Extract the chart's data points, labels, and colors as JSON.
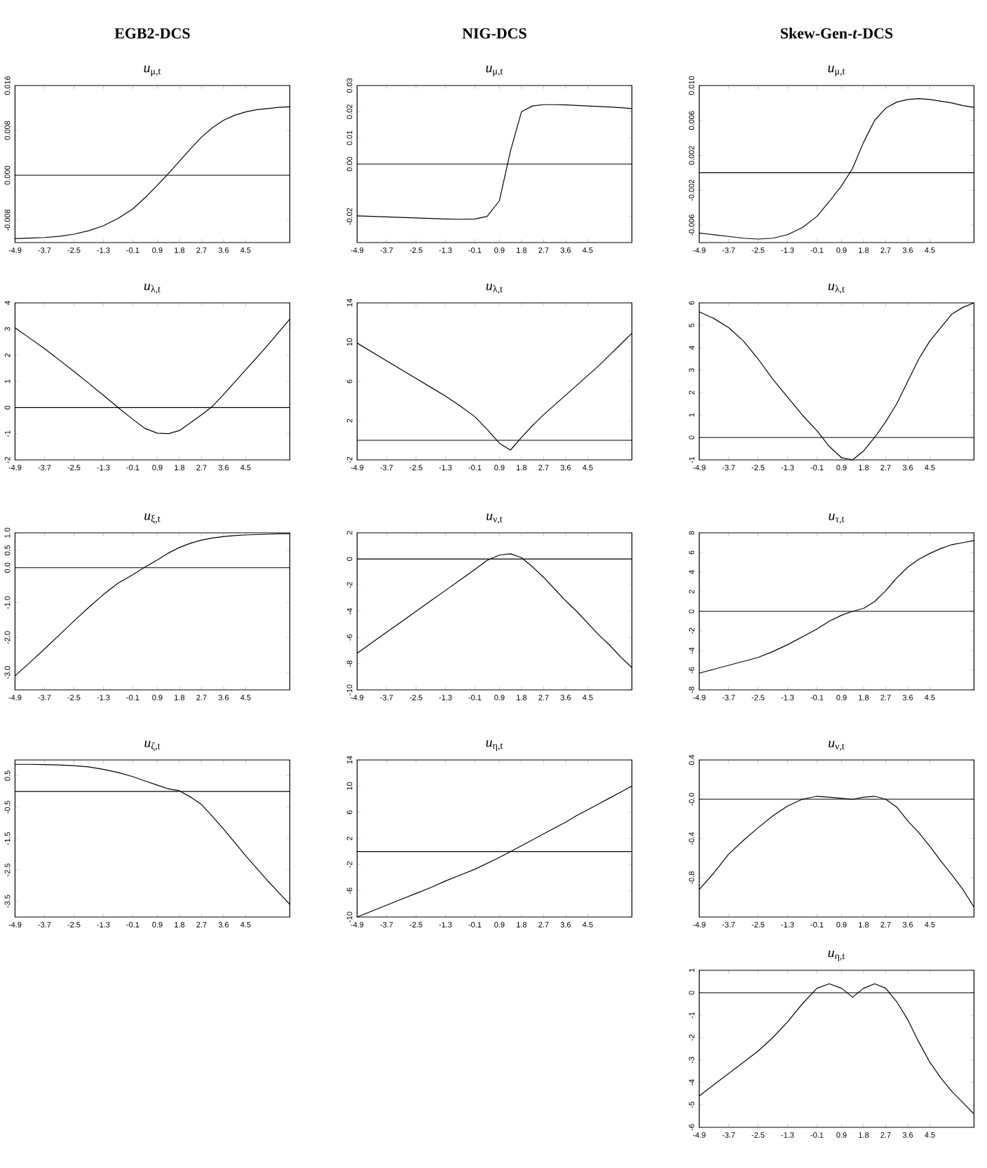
{
  "chart_data": [
    {
      "type": "line",
      "title": "EGB2-DCS",
      "subtitle": "*u*$_{μ,t}$",
      "color": "#000000",
      "xlim": [
        -4.9,
        6.3
      ],
      "ylim": [
        -0.012,
        0.016
      ],
      "xticks": [
        -4.9,
        -3.7,
        -2.5,
        -1.3,
        -0.1,
        0.9,
        1.8,
        2.7,
        3.6,
        4.5
      ],
      "yticks": [
        -0.008,
        {
          "value": 0,
          "label": "0.000"
        },
        0.008,
        0.016
      ],
      "ref_lines": [
        {
          "axis": "y",
          "value": 0
        }
      ],
      "x": [
        -4.9,
        -4.3,
        -3.7,
        -3.1,
        -2.5,
        -1.9,
        -1.3,
        -0.7,
        -0.1,
        0.4,
        0.9,
        1.35,
        1.8,
        2.25,
        2.7,
        3.15,
        3.6,
        4.05,
        4.5,
        4.95,
        5.4,
        5.85,
        6.3
      ],
      "values": [
        -0.0113,
        -0.0112,
        -0.0111,
        -0.0109,
        -0.0105,
        -0.0099,
        -0.009,
        -0.0077,
        -0.006,
        -0.004,
        -0.0018,
        0.0003,
        0.0025,
        0.0047,
        0.0068,
        0.0085,
        0.0098,
        0.0107,
        0.0113,
        0.0117,
        0.0119,
        0.0121,
        0.0122
      ]
    },
    {
      "type": "line",
      "title": "NIG-DCS",
      "subtitle": "*u*$_{μ,t}$",
      "color": "#000000",
      "xlim": [
        -4.9,
        6.3
      ],
      "ylim": [
        -0.03,
        0.03
      ],
      "xticks": [
        -4.9,
        -3.7,
        -2.5,
        -1.3,
        -0.1,
        0.9,
        1.8,
        2.7,
        3.6,
        4.5
      ],
      "yticks": [
        -0.02,
        {
          "value": 0,
          "label": "0.00"
        },
        0.01,
        0.02,
        0.03
      ],
      "ref_lines": [
        {
          "axis": "y",
          "value": 0
        }
      ],
      "x": [
        -4.9,
        -4.3,
        -3.7,
        -3.1,
        -2.5,
        -1.9,
        -1.3,
        -0.7,
        -0.1,
        0.4,
        0.9,
        1.35,
        1.8,
        2.25,
        2.7,
        3.15,
        3.6,
        4.05,
        4.5,
        4.95,
        5.4,
        5.85,
        6.3
      ],
      "values": [
        -0.0198,
        -0.02,
        -0.0202,
        -0.0204,
        -0.0206,
        -0.0208,
        -0.021,
        -0.0211,
        -0.021,
        -0.02,
        -0.014,
        0.005,
        0.02,
        0.0222,
        0.0227,
        0.0227,
        0.0226,
        0.0224,
        0.0222,
        0.022,
        0.0218,
        0.0215,
        0.0212
      ]
    },
    {
      "type": "line",
      "title": "Skew-Gen-*t*-DCS",
      "subtitle": "*u*$_{μ,t}$",
      "color": "#000000",
      "xlim": [
        -4.9,
        6.3
      ],
      "ylim": [
        -0.008,
        0.01
      ],
      "xticks": [
        -4.9,
        -3.7,
        -2.5,
        -1.3,
        -0.1,
        0.9,
        1.8,
        2.7,
        3.6,
        4.5
      ],
      "yticks": [
        -0.006,
        -0.002,
        0.002,
        0.006,
        {
          "value": 0.01,
          "label": "0.010"
        }
      ],
      "ref_lines": [
        {
          "axis": "y",
          "value": 0
        }
      ],
      "x": [
        -4.9,
        -4.3,
        -3.7,
        -3.1,
        -2.5,
        -1.9,
        -1.3,
        -0.7,
        -0.1,
        0.4,
        0.9,
        1.35,
        1.8,
        2.25,
        2.7,
        3.15,
        3.6,
        4.05,
        4.5,
        4.95,
        5.4,
        5.85,
        6.3
      ],
      "values": [
        -0.0069,
        -0.0071,
        -0.0073,
        -0.0075,
        -0.0076,
        -0.0075,
        -0.0071,
        -0.0063,
        -0.005,
        -0.0033,
        -0.0015,
        0.0005,
        0.0035,
        0.006,
        0.0074,
        0.0081,
        0.0084,
        0.0085,
        0.0084,
        0.0082,
        0.008,
        0.0077,
        0.0075
      ]
    },
    {
      "type": "line",
      "title": "*u*$_{λ,t}$",
      "color": "#000000",
      "xlim": [
        -4.9,
        6.3
      ],
      "ylim": [
        -2,
        4
      ],
      "xticks": [
        -4.9,
        -3.7,
        -2.5,
        -1.3,
        -0.1,
        0.9,
        1.8,
        2.7,
        3.6,
        4.5
      ],
      "yticks": [
        -2,
        -1,
        0,
        1,
        2,
        3,
        4
      ],
      "ref_lines": [
        {
          "axis": "y",
          "value": 0
        }
      ],
      "x": [
        -4.9,
        -4.3,
        -3.7,
        -3.1,
        -2.5,
        -1.9,
        -1.3,
        -0.7,
        -0.1,
        0.4,
        0.9,
        1.35,
        1.8,
        2.25,
        2.7,
        3.15,
        3.6,
        4.05,
        4.5,
        4.95,
        5.4,
        5.85,
        6.3
      ],
      "values": [
        3.05,
        2.65,
        2.25,
        1.82,
        1.38,
        0.93,
        0.47,
        0.0,
        -0.45,
        -0.8,
        -0.98,
        -1.0,
        -0.88,
        -0.58,
        -0.28,
        0.05,
        0.5,
        0.97,
        1.44,
        1.91,
        2.38,
        2.88,
        3.38
      ]
    },
    {
      "type": "line",
      "title": "*u*$_{λ,t}$",
      "color": "#000000",
      "xlim": [
        -4.9,
        6.3
      ],
      "ylim": [
        -2,
        14
      ],
      "xticks": [
        -4.9,
        -3.7,
        -2.5,
        -1.3,
        -0.1,
        0.9,
        1.8,
        2.7,
        3.6,
        4.5
      ],
      "yticks": [
        -2,
        2,
        6,
        10,
        14
      ],
      "ref_lines": [
        {
          "axis": "y",
          "value": 0
        }
      ],
      "x": [
        -4.9,
        -4.3,
        -3.7,
        -3.1,
        -2.5,
        -1.9,
        -1.3,
        -0.7,
        -0.1,
        0.4,
        0.9,
        1.35,
        1.8,
        2.25,
        2.7,
        3.15,
        3.6,
        4.05,
        4.5,
        4.95,
        5.4,
        5.85,
        6.3
      ],
      "values": [
        9.9,
        9.0,
        8.1,
        7.2,
        6.3,
        5.4,
        4.5,
        3.5,
        2.4,
        1.1,
        -0.3,
        -1.0,
        0.3,
        1.5,
        2.6,
        3.6,
        4.6,
        5.6,
        6.6,
        7.6,
        8.7,
        9.8,
        10.9
      ]
    },
    {
      "type": "line",
      "title": "*u*$_{λ,t}$",
      "color": "#000000",
      "xlim": [
        -4.9,
        6.3
      ],
      "ylim": [
        -1,
        6
      ],
      "xticks": [
        -4.9,
        -3.7,
        -2.5,
        -1.3,
        -0.1,
        0.9,
        1.8,
        2.7,
        3.6,
        4.5
      ],
      "yticks": [
        -1,
        0,
        1,
        2,
        3,
        4,
        5,
        6
      ],
      "ref_lines": [
        {
          "axis": "y",
          "value": 0
        }
      ],
      "x": [
        -4.9,
        -4.3,
        -3.7,
        -3.1,
        -2.5,
        -1.9,
        -1.3,
        -0.7,
        -0.1,
        0.4,
        0.9,
        1.35,
        1.8,
        2.25,
        2.7,
        3.15,
        3.6,
        4.05,
        4.5,
        4.95,
        5.4,
        5.85,
        6.3
      ],
      "values": [
        5.6,
        5.3,
        4.9,
        4.3,
        3.5,
        2.6,
        1.8,
        1.0,
        0.3,
        -0.4,
        -0.9,
        -1.0,
        -0.6,
        0.0,
        0.7,
        1.5,
        2.5,
        3.5,
        4.3,
        4.9,
        5.5,
        5.8,
        6.0
      ]
    },
    {
      "type": "line",
      "title": "*u*$_{ξ,t}$",
      "color": "#000000",
      "xlim": [
        -4.9,
        6.3
      ],
      "ylim": [
        -3.5,
        1.0
      ],
      "xticks": [
        -4.9,
        -3.7,
        -2.5,
        -1.3,
        -0.1,
        0.9,
        1.8,
        2.7,
        3.6,
        4.5
      ],
      "yticks": [
        {
          "value": -3,
          "label": "-3.0"
        },
        {
          "value": -2,
          "label": "-2.0"
        },
        {
          "value": -1,
          "label": "-1.0"
        },
        {
          "value": 0,
          "label": "0.0"
        },
        0.5,
        {
          "value": 1,
          "label": "1.0"
        }
      ],
      "ref_lines": [
        {
          "axis": "y",
          "value": 0
        }
      ],
      "x": [
        -4.9,
        -4.3,
        -3.7,
        -3.1,
        -2.5,
        -1.9,
        -1.3,
        -0.7,
        -0.1,
        0.4,
        0.9,
        1.35,
        1.8,
        2.25,
        2.7,
        3.15,
        3.6,
        4.05,
        4.5,
        4.95,
        5.4,
        5.85,
        6.3
      ],
      "values": [
        -3.1,
        -2.72,
        -2.33,
        -1.93,
        -1.53,
        -1.14,
        -0.77,
        -0.44,
        -0.2,
        0.02,
        0.22,
        0.42,
        0.58,
        0.7,
        0.79,
        0.85,
        0.89,
        0.92,
        0.94,
        0.95,
        0.96,
        0.97,
        0.97
      ]
    },
    {
      "type": "line",
      "title": "*u*$_{ν,t}$",
      "color": "#000000",
      "xlim": [
        -4.9,
        6.3
      ],
      "ylim": [
        -10,
        2
      ],
      "xticks": [
        -4.9,
        -3.7,
        -2.5,
        -1.3,
        -0.1,
        0.9,
        1.8,
        2.7,
        3.6,
        4.5
      ],
      "yticks": [
        -10,
        -8,
        -6,
        -4,
        -2,
        0,
        2
      ],
      "ref_lines": [
        {
          "axis": "y",
          "value": 0
        }
      ],
      "x": [
        -4.9,
        -4.3,
        -3.7,
        -3.1,
        -2.5,
        -1.9,
        -1.3,
        -0.7,
        -0.1,
        0.4,
        0.9,
        1.35,
        1.8,
        2.25,
        2.7,
        3.15,
        3.6,
        4.05,
        4.5,
        4.95,
        5.4,
        5.85,
        6.3
      ],
      "values": [
        -7.2,
        -6.4,
        -5.6,
        -4.8,
        -4.0,
        -3.2,
        -2.4,
        -1.6,
        -0.8,
        -0.1,
        0.3,
        0.4,
        0.1,
        -0.6,
        -1.4,
        -2.3,
        -3.2,
        -4.0,
        -4.9,
        -5.8,
        -6.6,
        -7.5,
        -8.3
      ]
    },
    {
      "type": "line",
      "title": "*u*$_{τ,t}$",
      "color": "#000000",
      "xlim": [
        -4.9,
        6.3
      ],
      "ylim": [
        -8,
        8
      ],
      "xticks": [
        -4.9,
        -3.7,
        -2.5,
        -1.3,
        -0.1,
        0.9,
        1.8,
        2.7,
        3.6,
        4.5
      ],
      "yticks": [
        -8,
        -6,
        -4,
        -2,
        0,
        2,
        4,
        6,
        8
      ],
      "ref_lines": [
        {
          "axis": "y",
          "value": 0
        }
      ],
      "x": [
        -4.9,
        -4.3,
        -3.7,
        -3.1,
        -2.5,
        -1.9,
        -1.3,
        -0.7,
        -0.1,
        0.4,
        0.9,
        1.35,
        1.8,
        2.25,
        2.7,
        3.15,
        3.6,
        4.05,
        4.5,
        4.95,
        5.4,
        5.85,
        6.3
      ],
      "values": [
        -6.3,
        -5.9,
        -5.5,
        -5.1,
        -4.7,
        -4.1,
        -3.4,
        -2.6,
        -1.8,
        -1.0,
        -0.4,
        0.0,
        0.3,
        1.0,
        2.1,
        3.4,
        4.5,
        5.3,
        5.9,
        6.4,
        6.8,
        7.0,
        7.2
      ]
    },
    {
      "type": "line",
      "title": "*u*$_{ζ,t}$",
      "color": "#000000",
      "xlim": [
        -4.9,
        6.3
      ],
      "ylim": [
        -4,
        1
      ],
      "xticks": [
        -4.9,
        -3.7,
        -2.5,
        -1.3,
        -0.1,
        0.9,
        1.8,
        2.7,
        3.6,
        4.5
      ],
      "yticks": [
        -3.5,
        -2.5,
        -1.5,
        -0.5,
        0.5
      ],
      "ref_lines": [
        {
          "axis": "y",
          "value": 0
        }
      ],
      "x": [
        -4.9,
        -4.3,
        -3.7,
        -3.1,
        -2.5,
        -1.9,
        -1.3,
        -0.7,
        -0.1,
        0.4,
        0.9,
        1.35,
        1.8,
        2.25,
        2.7,
        3.15,
        3.6,
        4.05,
        4.5,
        4.95,
        5.4,
        5.85,
        6.3
      ],
      "values": [
        0.86,
        0.86,
        0.85,
        0.84,
        0.82,
        0.78,
        0.7,
        0.6,
        0.47,
        0.33,
        0.2,
        0.08,
        0.02,
        -0.18,
        -0.42,
        -0.8,
        -1.2,
        -1.62,
        -2.05,
        -2.45,
        -2.85,
        -3.22,
        -3.6
      ]
    },
    {
      "type": "line",
      "title": "*u*$_{η,t}$",
      "color": "#000000",
      "xlim": [
        -4.9,
        6.3
      ],
      "ylim": [
        -10,
        14
      ],
      "xticks": [
        -4.9,
        -3.7,
        -2.5,
        -1.3,
        -0.1,
        0.9,
        1.8,
        2.7,
        3.6,
        4.5
      ],
      "yticks": [
        -10,
        -6,
        -2,
        2,
        6,
        10,
        14
      ],
      "ref_lines": [
        {
          "axis": "y",
          "value": 0
        }
      ],
      "x": [
        -4.9,
        -4.3,
        -3.7,
        -3.1,
        -2.5,
        -1.9,
        -1.3,
        -0.7,
        -0.1,
        0.4,
        0.9,
        1.35,
        1.8,
        2.25,
        2.7,
        3.15,
        3.6,
        4.05,
        4.5,
        4.95,
        5.4,
        5.85,
        6.3
      ],
      "values": [
        -10,
        -9.1,
        -8.2,
        -7.3,
        -6.4,
        -5.5,
        -4.5,
        -3.6,
        -2.7,
        -1.8,
        -0.9,
        0,
        0.9,
        1.8,
        2.7,
        3.6,
        4.5,
        5.5,
        6.4,
        7.3,
        8.2,
        9.1,
        10
      ]
    },
    {
      "type": "line",
      "title": "*u*$_{ν,t}$",
      "color": "#000000",
      "xlim": [
        -4.9,
        6.3
      ],
      "ylim": [
        -1.2,
        0.4
      ],
      "xticks": [
        -4.9,
        -3.7,
        -2.5,
        -1.3,
        -0.1,
        0.9,
        1.8,
        2.7,
        3.6,
        4.5
      ],
      "yticks": [
        -0.8,
        -0.4,
        {
          "value": 0,
          "label": "-0.0"
        },
        0.4
      ],
      "ref_lines": [
        {
          "axis": "y",
          "value": 0
        }
      ],
      "x": [
        -4.9,
        -4.3,
        -3.7,
        -3.1,
        -2.5,
        -1.9,
        -1.3,
        -0.7,
        -0.1,
        0.4,
        0.9,
        1.35,
        1.8,
        2.25,
        2.7,
        3.15,
        3.6,
        4.05,
        4.5,
        4.95,
        5.4,
        5.85,
        6.3
      ],
      "values": [
        -0.92,
        -0.75,
        -0.56,
        -0.42,
        -0.29,
        -0.17,
        -0.07,
        0.0,
        0.03,
        0.02,
        0.01,
        0.0,
        0.02,
        0.03,
        0.0,
        -0.08,
        -0.22,
        -0.34,
        -0.48,
        -0.63,
        -0.77,
        -0.92,
        -1.1
      ]
    },
    {
      "type": "line",
      "title": "*u*$_{η,t}$",
      "color": "#000000",
      "xlim": [
        -4.9,
        6.3
      ],
      "ylim": [
        -6,
        1
      ],
      "xticks": [
        -4.9,
        -3.7,
        -2.5,
        -1.3,
        -0.1,
        0.9,
        1.8,
        2.7,
        3.6,
        4.5
      ],
      "yticks": [
        -6,
        -5,
        -4,
        -3,
        -2,
        -1,
        0,
        1
      ],
      "ref_lines": [
        {
          "axis": "y",
          "value": 0
        }
      ],
      "x": [
        -4.9,
        -4.3,
        -3.7,
        -3.1,
        -2.5,
        -1.9,
        -1.3,
        -0.7,
        -0.1,
        0.4,
        0.9,
        1.35,
        1.8,
        2.25,
        2.7,
        3.15,
        3.6,
        4.05,
        4.5,
        4.95,
        5.4,
        5.85,
        6.3
      ],
      "values": [
        -4.6,
        -4.1,
        -3.6,
        -3.1,
        -2.6,
        -2.0,
        -1.3,
        -0.5,
        0.2,
        0.4,
        0.2,
        -0.2,
        0.2,
        0.4,
        0.2,
        -0.4,
        -1.2,
        -2.2,
        -3.1,
        -3.8,
        -4.4,
        -4.9,
        -5.4
      ]
    }
  ]
}
